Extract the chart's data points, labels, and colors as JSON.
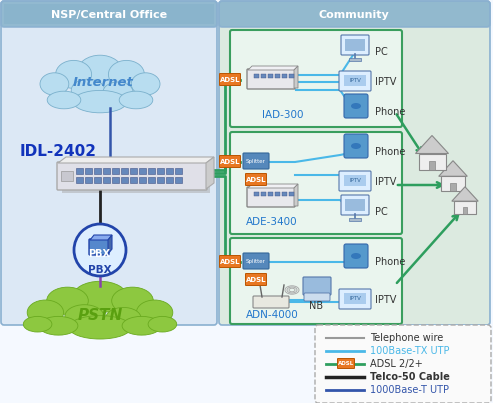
{
  "bg_color": "#f5f9ff",
  "left_panel_bg": "#dce8f5",
  "left_panel_border": "#8ab0d0",
  "left_panel_label": "NSP/Central Office",
  "right_panel_bg": "#dceae0",
  "right_panel_border": "#8ab0d0",
  "right_panel_label": "Community",
  "comm_box_bg": "#eaf5ee",
  "comm_box_border": "#3a9e5e",
  "internet_cloud_color": "#b8ddf0",
  "internet_cloud_edge": "#7ab0cc",
  "internet_label": "Internet",
  "internet_label_color": "#4488cc",
  "pstn_cloud_color": "#8dc840",
  "pstn_cloud_edge": "#6aaa20",
  "pstn_label": "PSTN",
  "pstn_label_color": "#5aa010",
  "pbx_circle_color": "#ddeeff",
  "pbx_circle_edge": "#2244aa",
  "pbx_label": "PBX",
  "pbx_label_color": "#2244aa",
  "pbx_icon_color": "#5588cc",
  "idl_label": "IDL-2402",
  "idl_label_color": "#1133bb",
  "dslam_body": "#e8e8ec",
  "dslam_edge": "#aaaaaa",
  "adsl_line_color": "#2e9e5e",
  "adsl_box_color": "#e87722",
  "adsl_label_text": "ADSL",
  "blue100_color": "#4ab8e8",
  "blue1000_color": "#3355aa",
  "gray_wire_color": "#999999",
  "black_cable_color": "#222222",
  "purple_wire_color": "#8844aa",
  "device_label_color": "#2277cc",
  "label_color": "#333333",
  "iad_label": "IAD-300",
  "ade_label": "ADE-3400",
  "adn_label": "ADN-4000",
  "house_roof": "#cccccc",
  "house_wall": "#eeeeee",
  "house_door": "#aaaaaa",
  "legend_bg": "#fafafa",
  "legend_border": "#aaaaaa",
  "legend_items": [
    {
      "label": "Telephone wire",
      "color": "#999999",
      "lw": 1.5,
      "bold": false,
      "is_adsl": false,
      "is_blue_label": false
    },
    {
      "label": "100Base-TX UTP",
      "color": "#4ab8e8",
      "lw": 2.0,
      "bold": false,
      "is_adsl": false,
      "is_blue_label": true
    },
    {
      "label": "ADSL 2/2+",
      "color": "#2e9e5e",
      "lw": 2.0,
      "bold": false,
      "is_adsl": true,
      "is_blue_label": false
    },
    {
      "label": "Telco-50 Cable",
      "color": "#222222",
      "lw": 2.5,
      "bold": true,
      "is_adsl": false,
      "is_blue_label": false
    },
    {
      "label": "1000Base-T UTP",
      "color": "#3355aa",
      "lw": 2.0,
      "bold": false,
      "is_adsl": false,
      "is_blue_label": true
    }
  ]
}
